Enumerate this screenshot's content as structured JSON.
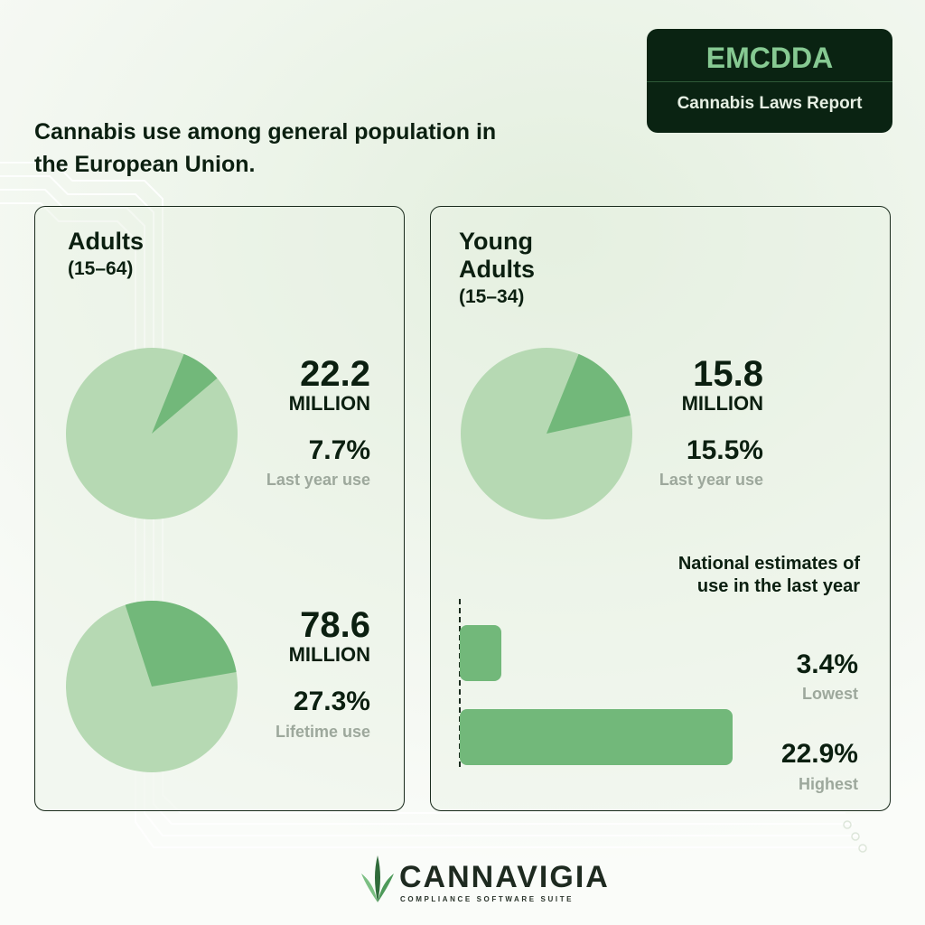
{
  "badge": {
    "title": "EMCDDA",
    "subtitle": "Cannabis Laws Report"
  },
  "headline": "Cannabis use among general population in the European Union.",
  "colors": {
    "slice": "#72b87a",
    "pie_base": "#b6d9b3",
    "dark": "#0a2312",
    "muted": "#9da89c"
  },
  "left_panel": {
    "title": "Adults",
    "age_range": "(15–64)",
    "stats": [
      {
        "value": "22.2",
        "unit": "MILLION",
        "percent": "7.7%",
        "caption": "Last year use"
      },
      {
        "value": "78.6",
        "unit": "MILLION",
        "percent": "27.3%",
        "caption": "Lifetime use"
      }
    ]
  },
  "right_panel": {
    "title_line1": "Young",
    "title_line2": "Adults",
    "age_range": "(15–34)",
    "stat": {
      "value": "15.8",
      "unit": "MILLION",
      "percent": "15.5%",
      "caption": "Last year use"
    },
    "national_title_line1": "National estimates of",
    "national_title_line2": "use in the last year",
    "bars": [
      {
        "value": "3.4%",
        "label": "Lowest"
      },
      {
        "value": "22.9%",
        "label": "Highest"
      }
    ]
  },
  "chart_data": [
    {
      "type": "pie",
      "title": "Adults (15–64) Last year use",
      "values": [
        7.7,
        92.3
      ]
    },
    {
      "type": "pie",
      "title": "Adults (15–64) Lifetime use",
      "values": [
        27.3,
        72.7
      ]
    },
    {
      "type": "pie",
      "title": "Young Adults (15–34) Last year use",
      "values": [
        15.5,
        84.5
      ]
    },
    {
      "type": "bar",
      "title": "National estimates of use in the last year",
      "categories": [
        "Lowest",
        "Highest"
      ],
      "values": [
        3.4,
        22.9
      ]
    }
  ],
  "logo": {
    "wordmark": "CANNAVIGIA",
    "tagline": "COMPLIANCE SOFTWARE SUITE",
    "icon": "cannabis-leaf-icon"
  }
}
